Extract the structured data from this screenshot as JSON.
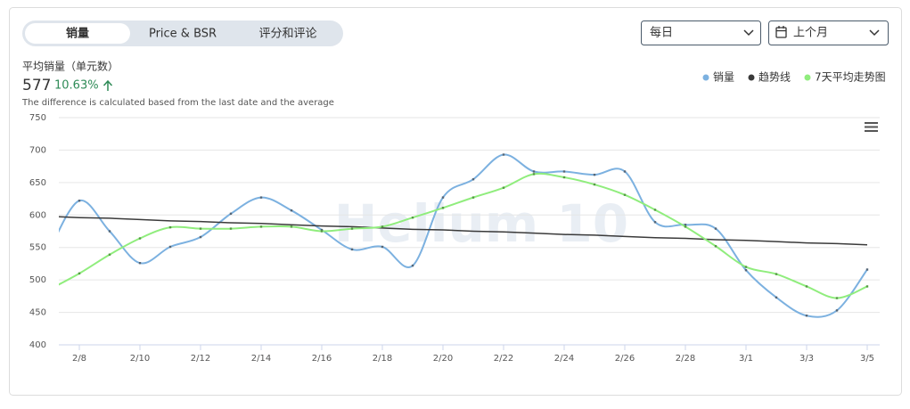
{
  "tabs": [
    "销量",
    "Price & BSR",
    "评分和评论"
  ],
  "filters": {
    "interval": "每日",
    "range": "上个月"
  },
  "metric": {
    "label": "平均销量（单元数）",
    "value": 577,
    "change": "10.63%",
    "note": "The difference is calculated based from the last date and the average"
  },
  "watermark": "Helium 10",
  "chart_data": {
    "type": "line",
    "categories": [
      null,
      "2/8",
      null,
      "2/10",
      null,
      "2/12",
      null,
      "2/14",
      null,
      "2/16",
      null,
      "2/18",
      null,
      "2/20",
      null,
      "2/22",
      null,
      "2/24",
      null,
      "2/26",
      null,
      "2/28",
      null,
      "3/1",
      null,
      "3/3",
      null,
      "3/5"
    ],
    "series": [
      {
        "name": "销量",
        "color": "#7cb1e0",
        "values": [
          545,
          622,
          575,
          526,
          551,
          566,
          602,
          627,
          607,
          577,
          547,
          551,
          522,
          627,
          655,
          693,
          667,
          667,
          662,
          667,
          589,
          585,
          579,
          515,
          473,
          445,
          453,
          516
        ]
      },
      {
        "name": "趋势线",
        "color": "#3a3a3a",
        "values": [
          598,
          596,
          595,
          593,
          591,
          590,
          588,
          587,
          585,
          583,
          582,
          580,
          578,
          577,
          575,
          574,
          572,
          570,
          569,
          567,
          565,
          564,
          562,
          561,
          559,
          557,
          556,
          554
        ]
      },
      {
        "name": "7天平均走势图",
        "color": "#90ed7d",
        "values": [
          485,
          510,
          539,
          564,
          581,
          579,
          579,
          582,
          582,
          575,
          579,
          582,
          596,
          611,
          627,
          642,
          663,
          658,
          647,
          631,
          608,
          582,
          552,
          520,
          509,
          490,
          472,
          490
        ]
      }
    ],
    "ylim": [
      400,
      750
    ],
    "yticks": [
      400,
      450,
      500,
      550,
      600,
      650,
      700,
      750
    ],
    "grid": true,
    "legend": "top-right"
  }
}
